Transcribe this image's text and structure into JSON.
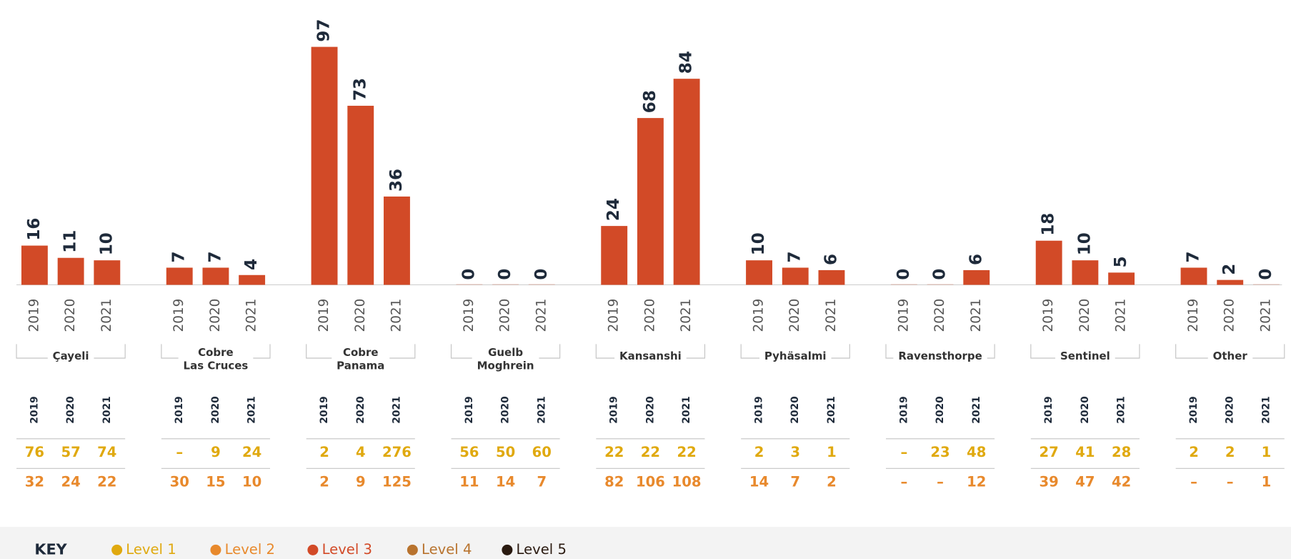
{
  "chart_data": {
    "type": "bar",
    "years": [
      "2019",
      "2020",
      "2021"
    ],
    "ylim": [
      0,
      100
    ],
    "groups": [
      {
        "name": "Çayeli",
        "values": [
          16,
          11,
          10
        ],
        "level1": [
          76,
          57,
          74
        ],
        "level2": [
          32,
          24,
          22
        ]
      },
      {
        "name": "Cobre\nLas Cruces",
        "values": [
          7,
          7,
          4
        ],
        "level1": [
          "–",
          9,
          24
        ],
        "level2": [
          30,
          15,
          10
        ]
      },
      {
        "name": "Cobre\nPanama",
        "values": [
          97,
          73,
          36
        ],
        "level1": [
          2,
          4,
          276
        ],
        "level2": [
          2,
          9,
          125
        ]
      },
      {
        "name": "Guelb\nMoghrein",
        "values": [
          0,
          0,
          0
        ],
        "level1": [
          56,
          50,
          60
        ],
        "level2": [
          11,
          14,
          7
        ]
      },
      {
        "name": "Kansanshi",
        "values": [
          24,
          68,
          84
        ],
        "level1": [
          22,
          22,
          22
        ],
        "level2": [
          82,
          106,
          108
        ]
      },
      {
        "name": "Pyhäsalmi",
        "values": [
          10,
          7,
          6
        ],
        "level1": [
          2,
          3,
          1
        ],
        "level2": [
          14,
          7,
          2
        ]
      },
      {
        "name": "Ravensthorpe",
        "values": [
          0,
          0,
          6
        ],
        "level1": [
          "–",
          23,
          48
        ],
        "level2": [
          "–",
          "–",
          12
        ]
      },
      {
        "name": "Sentinel",
        "values": [
          18,
          10,
          5
        ],
        "level1": [
          27,
          41,
          28
        ],
        "level2": [
          39,
          47,
          42
        ]
      },
      {
        "name": "Other",
        "values": [
          7,
          2,
          0
        ],
        "level1": [
          2,
          2,
          1
        ],
        "level2": [
          "–",
          "–",
          1
        ]
      }
    ],
    "key_title": "KEY",
    "legend": [
      {
        "name": "Level 1",
        "color": "#e0a90f"
      },
      {
        "name": "Level 2",
        "color": "#e8892c"
      },
      {
        "name": "Level 3",
        "color": "#d24a27"
      },
      {
        "name": "Level 4",
        "color": "#b8732e"
      },
      {
        "name": "Level 5",
        "color": "#2a1a10"
      }
    ]
  }
}
